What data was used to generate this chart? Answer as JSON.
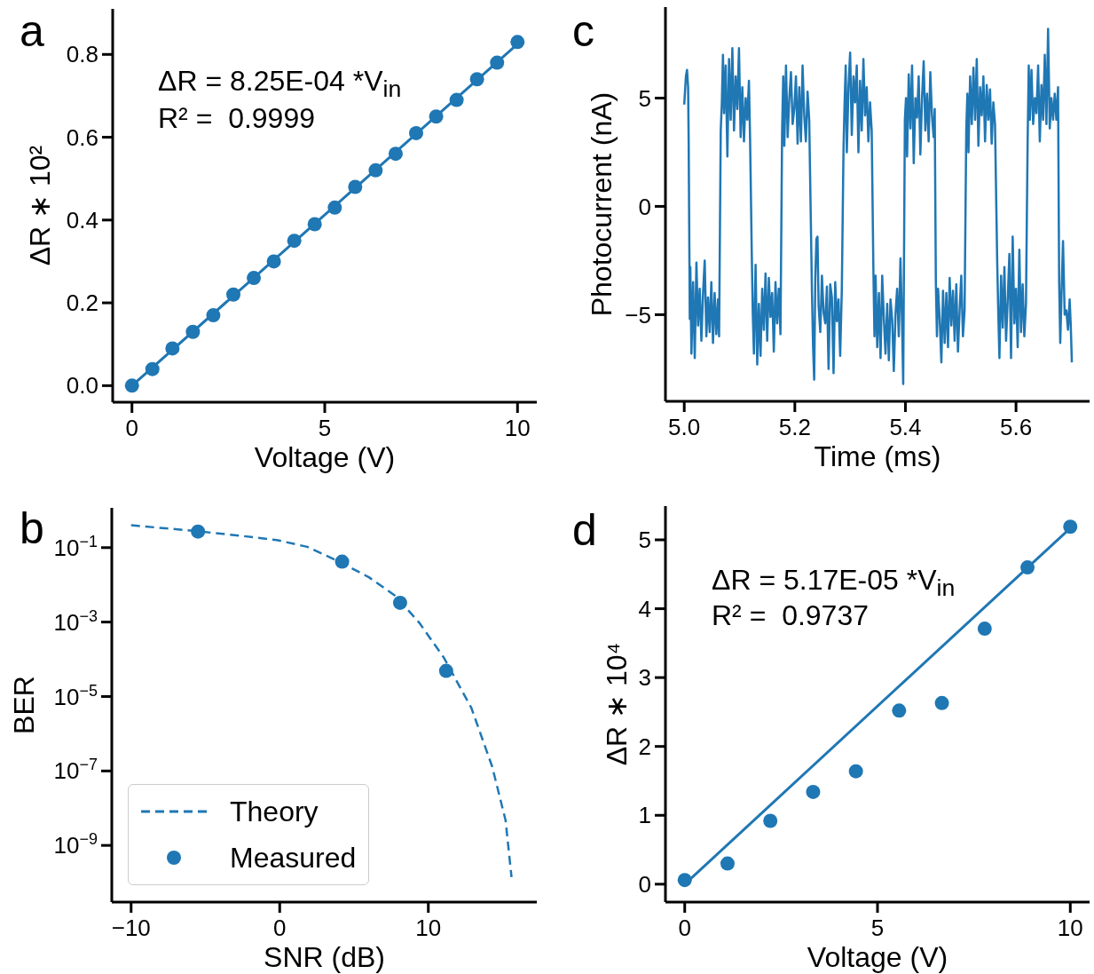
{
  "chart_data": [
    {
      "type": "scatter",
      "xlabel": "Voltage (V)",
      "ylabel": "ΔR ∗ 10²",
      "annotations": [
        "a",
        "ΔR = 8.25E-04 *V$_{in}$",
        "R² =  0.9999"
      ],
      "xlim": [
        -0.5,
        10.5
      ],
      "ylim": [
        -0.04,
        0.91
      ],
      "xticks": [
        0,
        5,
        10
      ],
      "yticks": [
        {
          "value": 0,
          "label": "0.0"
        },
        0.2,
        0.4,
        0.6,
        0.8
      ],
      "series": [
        {
          "color": "#1f77b4",
          "marker": "circle",
          "x": [
            0,
            0.53,
            1.05,
            1.58,
            2.11,
            2.63,
            3.16,
            3.68,
            4.21,
            4.74,
            5.26,
            5.79,
            6.32,
            6.84,
            7.37,
            7.89,
            8.42,
            8.95,
            9.47,
            10
          ],
          "values": [
            0,
            0.04,
            0.09,
            0.13,
            0.17,
            0.22,
            0.26,
            0.3,
            0.35,
            0.39,
            0.43,
            0.48,
            0.52,
            0.56,
            0.61,
            0.65,
            0.69,
            0.74,
            0.78,
            0.83
          ]
        },
        {
          "type": "line",
          "color": "#1f77b4",
          "line_style": "solid",
          "x": [
            0,
            10
          ],
          "values": [
            0,
            0.825
          ]
        }
      ]
    },
    {
      "type": "line",
      "xlabel": "Time (ms)",
      "ylabel": "Photocurrent (nA)",
      "annotations": [
        "c"
      ],
      "xlim": [
        4.966,
        5.733
      ],
      "ylim": [
        -9,
        9.2
      ],
      "xticks": [
        {
          "value": 5,
          "label": "5.0"
        },
        5.2,
        5.4,
        5.6
      ],
      "yticks": [
        {
          "value": -5,
          "label": "−5"
        },
        0,
        5
      ],
      "series": [
        {
          "color": "#1f77b4",
          "line_style": "solid",
          "x": [
            5.0,
            5.003,
            5.005,
            5.007,
            5.008,
            5.01,
            5.011,
            5.013,
            5.016,
            5.019,
            5.022,
            5.025,
            5.028,
            5.031,
            5.034,
            5.037,
            5.04,
            5.043,
            5.046,
            5.049,
            5.052,
            5.055,
            5.058,
            5.061,
            5.063,
            5.066,
            5.068,
            5.07,
            5.072,
            5.075,
            5.078,
            5.081,
            5.084,
            5.087,
            5.09,
            5.093,
            5.096,
            5.099,
            5.102,
            5.105,
            5.108,
            5.111,
            5.114,
            5.117,
            5.119,
            5.122,
            5.124,
            5.126,
            5.129,
            5.132,
            5.135,
            5.138,
            5.141,
            5.144,
            5.147,
            5.15,
            5.153,
            5.156,
            5.159,
            5.162,
            5.165,
            5.168,
            5.171,
            5.174,
            5.177,
            5.179,
            5.181,
            5.184,
            5.187,
            5.19,
            5.193,
            5.196,
            5.199,
            5.202,
            5.205,
            5.208,
            5.211,
            5.214,
            5.217,
            5.22,
            5.223,
            5.226,
            5.231,
            5.233,
            5.235,
            5.237,
            5.239,
            5.241,
            5.243,
            5.246,
            5.249,
            5.252,
            5.255,
            5.258,
            5.261,
            5.264,
            5.267,
            5.27,
            5.273,
            5.276,
            5.279,
            5.282,
            5.285,
            5.288,
            5.29,
            5.292,
            5.294,
            5.297,
            5.3,
            5.303,
            5.306,
            5.309,
            5.312,
            5.315,
            5.318,
            5.321,
            5.324,
            5.327,
            5.33,
            5.333,
            5.336,
            5.339,
            5.342,
            5.344,
            5.346,
            5.349,
            5.352,
            5.355,
            5.358,
            5.361,
            5.364,
            5.367,
            5.37,
            5.373,
            5.376,
            5.379,
            5.382,
            5.385,
            5.388,
            5.391,
            5.394,
            5.396,
            5.399,
            5.401,
            5.403,
            5.406,
            5.409,
            5.412,
            5.415,
            5.418,
            5.421,
            5.424,
            5.427,
            5.43,
            5.433,
            5.436,
            5.439,
            5.442,
            5.445,
            5.448,
            5.451,
            5.453,
            5.455,
            5.457,
            5.459,
            5.462,
            5.465,
            5.468,
            5.471,
            5.474,
            5.477,
            5.48,
            5.483,
            5.486,
            5.489,
            5.492,
            5.495,
            5.498,
            5.501,
            5.504,
            5.507,
            5.51,
            5.512,
            5.514,
            5.517,
            5.52,
            5.523,
            5.526,
            5.529,
            5.532,
            5.535,
            5.538,
            5.541,
            5.544,
            5.547,
            5.55,
            5.553,
            5.556,
            5.559,
            5.562,
            5.566,
            5.568,
            5.57,
            5.573,
            5.576,
            5.579,
            5.582,
            5.585,
            5.588,
            5.591,
            5.594,
            5.597,
            5.6,
            5.603,
            5.606,
            5.609,
            5.612,
            5.615,
            5.618,
            5.621,
            5.623,
            5.625,
            5.628,
            5.631,
            5.634,
            5.637,
            5.64,
            5.643,
            5.646,
            5.649,
            5.652,
            5.655,
            5.658,
            5.661,
            5.664,
            5.667,
            5.67,
            5.673,
            5.676,
            5.678,
            5.68,
            5.682,
            5.685,
            5.688,
            5.691,
            5.694,
            5.697,
            5.699,
            5.701
          ],
          "values": [
            4.7,
            6.0,
            6.3,
            5.5,
            3.0,
            -5.2,
            -2.8,
            -6.8,
            -3.5,
            -7.0,
            -2.6,
            -5.5,
            -3.8,
            -6.2,
            -4.0,
            -2.5,
            -6.0,
            -4.2,
            -5.8,
            -3.5,
            -6.3,
            -4.0,
            -5.9,
            -4.3,
            -6.0,
            3.5,
            4.8,
            7.0,
            4.3,
            6.5,
            2.3,
            6.8,
            4.0,
            7.3,
            3.5,
            6.0,
            4.5,
            7.3,
            3.2,
            5.5,
            3.0,
            5.0,
            4.0,
            5.8,
            3.2,
            -2.0,
            -5.0,
            -6.8,
            -2.7,
            -7.3,
            -4.5,
            -6.9,
            -3.8,
            -5.7,
            -3.1,
            -6.2,
            -3.3,
            -5.1,
            -4.0,
            -6.7,
            -3.5,
            -5.4,
            -3.8,
            -5.9,
            3.5,
            6.0,
            2.8,
            6.5,
            3.2,
            5.0,
            6.2,
            3.8,
            4.5,
            6.0,
            2.9,
            5.5,
            3.0,
            6.5,
            4.2,
            3.0,
            5.3,
            4.0,
            -4.0,
            -6.5,
            -8.0,
            -3.3,
            -1.5,
            -1.4,
            -4.6,
            -5.8,
            -3.2,
            -4.9,
            -5.4,
            -3.7,
            -7.5,
            -3.6,
            -4.2,
            -7.7,
            -3.5,
            -5.3,
            -4.3,
            -6.9,
            -3.8,
            2.6,
            4.8,
            6.5,
            2.5,
            5.5,
            7.1,
            3.3,
            6.0,
            4.8,
            6.5,
            2.5,
            5.8,
            3.5,
            6.8,
            4.2,
            5.5,
            3.0,
            4.8,
            3.5,
            -2.8,
            -6.0,
            -3.2,
            -6.5,
            -4.0,
            -7.0,
            -3.2,
            -5.2,
            -6.8,
            -4.5,
            -7.1,
            -4.3,
            -5.2,
            -7.6,
            -5.0,
            -3.8,
            -6.0,
            -2.4,
            -5.5,
            -8.2,
            4.0,
            5.0,
            2.3,
            6.1,
            3.6,
            6.5,
            2.0,
            5.0,
            4.1,
            6.0,
            2.4,
            5.0,
            6.7,
            3.5,
            5.2,
            3.0,
            6.2,
            4.2,
            3.2,
            4.5,
            -3.5,
            -6.0,
            -3.8,
            -5.2,
            -7.2,
            -3.9,
            -6.3,
            -4.0,
            -6.5,
            -3.3,
            -5.5,
            -3.9,
            -6.2,
            -3.6,
            -6.7,
            -4.8,
            -3.2,
            -6.0,
            -4.8,
            3.5,
            5.2,
            2.5,
            6.0,
            3.8,
            6.4,
            4.0,
            6.8,
            2.8,
            5.5,
            4.2,
            6.0,
            3.0,
            5.6,
            4.0,
            5.4,
            2.9,
            4.8,
            3.8,
            -2.6,
            -5.0,
            -7.0,
            -3.2,
            -5.6,
            -2.8,
            -6.2,
            -4.3,
            -2.2,
            -7.0,
            -1.4,
            -5.4,
            -3.8,
            -6.5,
            -2.0,
            -5.8,
            -3.6,
            -6.0,
            -4.5,
            3.0,
            6.5,
            4.0,
            6.3,
            3.8,
            5.0,
            4.3,
            6.5,
            3.0,
            5.6,
            4.0,
            7.0,
            3.8,
            8.2,
            3.6,
            5.0,
            4.0,
            5.2,
            4.0,
            5.5,
            -3.5,
            -6.3,
            -4.3,
            -1.6,
            -5.0,
            -4.8,
            -5.7,
            -4.3,
            -5.5,
            -7.2
          ]
        }
      ]
    },
    {
      "type": "line",
      "xlabel": "SNR (dB)",
      "ylabel": "BER",
      "annotations": [
        "b"
      ],
      "log": "y",
      "legend": "bottom left",
      "xlim": [
        -11.3,
        17.3
      ],
      "ylim": [
        3e-11,
        1.17
      ],
      "xticks": [
        {
          "value": -10,
          "label": "−10"
        },
        0,
        10
      ],
      "yticks": [
        {
          "value": 0.1,
          "label": "10$^{−1}$"
        },
        {
          "value": 0.001,
          "label": "10$^{−3}$"
        },
        {
          "value": 1e-05,
          "label": "10$^{−5}$"
        },
        {
          "value": 1e-07,
          "label": "10$^{−7}$"
        },
        {
          "value": 1e-09,
          "label": "10$^{−9}$"
        }
      ],
      "series": [
        {
          "name": "Theory",
          "color": "#1f77b4",
          "line_style": "dashed",
          "x": [
            -10,
            -5.7,
            -2.7,
            -0.2,
            1.85,
            3.9,
            6.0,
            7.8,
            9.4,
            11.05,
            12.9,
            14.3,
            15.2,
            15.6
          ],
          "values": [
            0.4,
            0.28,
            0.21,
            0.16,
            0.105,
            0.044,
            0.016,
            0.005,
            0.00095,
            0.00011,
            4.9e-06,
            1.3e-07,
            4.7e-09,
            1.4e-10
          ]
        },
        {
          "type": "scatter",
          "name": "Measured",
          "color": "#1f77b4",
          "marker": "circle",
          "x": [
            -5.5,
            4.2,
            8.1,
            11.2
          ],
          "values": [
            0.27,
            0.042,
            0.0033,
            4.9e-05
          ]
        }
      ]
    },
    {
      "type": "scatter",
      "xlabel": "Voltage (V)",
      "ylabel": "ΔR ∗ 10⁴",
      "annotations": [
        "d",
        "ΔR = 5.17E-05 *V$_{in}$",
        "R² =  0.9737"
      ],
      "xlim": [
        -0.5,
        10.5
      ],
      "ylim": [
        -0.26,
        5.49
      ],
      "xticks": [
        0,
        5,
        10
      ],
      "yticks": [
        0,
        1,
        2,
        3,
        4,
        5
      ],
      "series": [
        {
          "color": "#1f77b4",
          "marker": "circle",
          "x": [
            0,
            1.11,
            2.22,
            3.33,
            4.44,
            5.56,
            6.67,
            7.78,
            8.89,
            10
          ],
          "values": [
            0.06,
            0.3,
            0.92,
            1.34,
            1.64,
            2.52,
            2.63,
            3.71,
            4.6,
            5.19
          ]
        },
        {
          "type": "line",
          "color": "#1f77b4",
          "line_style": "solid",
          "x": [
            0,
            10
          ],
          "values": [
            0,
            5.17
          ]
        }
      ]
    }
  ]
}
